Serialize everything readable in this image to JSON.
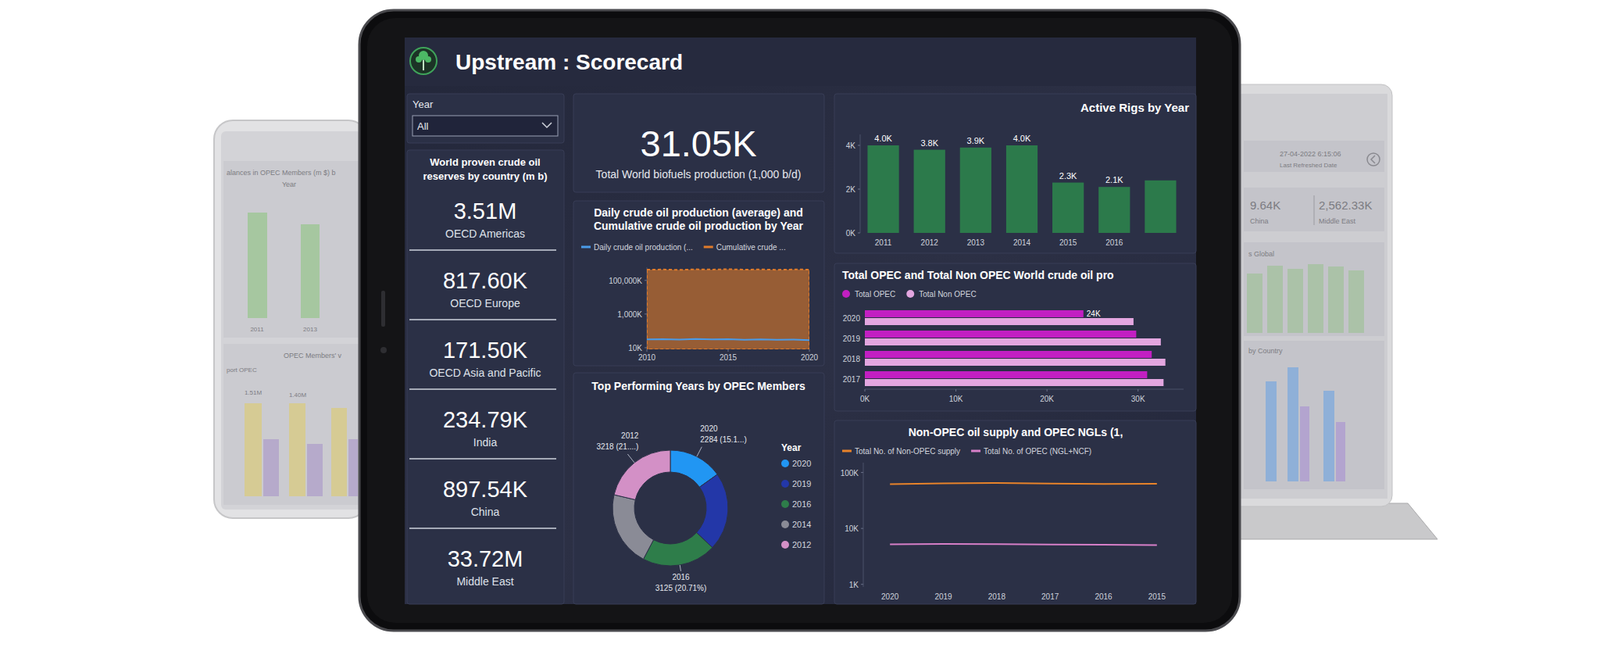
{
  "background_devices": {
    "phone": {
      "texts": [
        "alances in OPEC Members (m $) b",
        "Year",
        "2011",
        "2013",
        "OPEC Members' v",
        "port OPEC",
        "1.51M",
        "1.40M"
      ]
    },
    "laptop": {
      "texts": [
        "27-04-2022 6:15:06",
        "Last Refreshed Date",
        "9.64K",
        "China",
        "2,562.33K",
        "Middle East",
        "s Global",
        "by Country"
      ]
    }
  },
  "header": {
    "title": "Upstream : Scorecard"
  },
  "slicer": {
    "label": "Year",
    "value": "All"
  },
  "reserves": {
    "title": "World proven crude oil reserves by country (m b)",
    "cards": [
      {
        "value": "3.51M",
        "label": "OECD Americas"
      },
      {
        "value": "817.60K",
        "label": "OECD Europe"
      },
      {
        "value": "171.50K",
        "label": "OECD Asia and Pacific"
      },
      {
        "value": "234.79K",
        "label": "India"
      },
      {
        "value": "897.54K",
        "label": "China"
      },
      {
        "value": "33.72M",
        "label": "Middle East"
      }
    ]
  },
  "kpi": {
    "value": "31.05K",
    "label": "Total World biofuels production (1,000 b/d)"
  },
  "chart_data": [
    {
      "type": "line",
      "title": "Daily crude oil production (average) and Cumulative crude oil production by Year",
      "x": [
        2010,
        2011,
        2012,
        2013,
        2014,
        2015,
        2016,
        2017,
        2018,
        2019,
        2020
      ],
      "xlim": [
        2010,
        2020
      ],
      "xticks": [
        2010,
        2015,
        2020
      ],
      "log": "y",
      "ylim": [
        8000,
        600000000
      ],
      "yticks": [
        {
          "value": 10000,
          "label": "10K"
        },
        {
          "value": 1000000,
          "label": "1,000K"
        },
        {
          "value": 100000000,
          "label": "100,000K"
        }
      ],
      "legend": "top",
      "series": [
        {
          "name": "Daily crude oil production (...",
          "color": "#4a9be8",
          "type": "line",
          "values": [
            31000,
            32500,
            30500,
            33000,
            31500,
            32000,
            30000,
            31000,
            29500,
            30500,
            28000
          ]
        },
        {
          "name": "Cumulative crude ...",
          "color": "#e07b2a",
          "type": "area",
          "values": [
            430000000,
            445000000,
            420000000,
            455000000,
            440000000,
            460000000,
            435000000,
            450000000,
            425000000,
            445000000,
            440000000
          ]
        }
      ]
    },
    {
      "type": "donut",
      "title": "Top Performing Years by OPEC Members",
      "legend_title": "Year",
      "categories": [
        "2020",
        "2019",
        "2016",
        "2014",
        "2012"
      ],
      "values": [
        2284,
        3300,
        3125,
        3162,
        3218
      ],
      "value_labels": [
        "2284 (15.1...)",
        null,
        "3125 (20.71%)",
        null,
        "3218 (21....)"
      ],
      "colors": [
        "#2196f3",
        "#2337a8",
        "#2e7d4a",
        "#8a8b96",
        "#d390c6"
      ],
      "data_labels": true,
      "legend": "right"
    },
    {
      "type": "bar",
      "title": "Active Rigs by Year",
      "categories": [
        "2011",
        "2012",
        "2013",
        "2014",
        "2015",
        "2016",
        null
      ],
      "values": [
        4000,
        3800,
        3900,
        4000,
        2300,
        2100,
        2400
      ],
      "value_labels": [
        "4.0K",
        "3.8K",
        "3.9K",
        "4.0K",
        "2.3K",
        "2.1K",
        null
      ],
      "color": "#2c7a4b",
      "ylim": [
        0,
        4500
      ],
      "yticks": [
        {
          "value": 0,
          "label": "0K"
        },
        {
          "value": 2000,
          "label": "2K"
        },
        {
          "value": 4000,
          "label": "4K"
        }
      ],
      "data_labels": true
    },
    {
      "type": "bar",
      "orientation": "horizontal",
      "title": "Total OPEC and Total Non OPEC World crude oil pro",
      "categories": [
        "2020",
        "2019",
        "2018",
        "2017"
      ],
      "series": [
        {
          "name": "Total OPEC",
          "color": "#c21fc2",
          "values": [
            24000,
            29800,
            31500,
            31000
          ],
          "value_labels": [
            "24K",
            null,
            null,
            null
          ]
        },
        {
          "name": "Total Non OPEC",
          "color": "#e3a6e0",
          "values": [
            29500,
            32500,
            33000,
            32800
          ]
        }
      ],
      "xlim": [
        0,
        35000
      ],
      "xticks": [
        {
          "value": 0,
          "label": "0K"
        },
        {
          "value": 10000,
          "label": "10K"
        },
        {
          "value": 20000,
          "label": "20K"
        },
        {
          "value": 30000,
          "label": "30K"
        }
      ],
      "legend": "top",
      "data_labels": true
    },
    {
      "type": "line",
      "title": "Non-OPEC oil supply and OPEC NGLs (1,",
      "categories": [
        "2020",
        "2019",
        "2018",
        "2017",
        "2016",
        "2015"
      ],
      "log": "y",
      "ylim": [
        900,
        150000
      ],
      "yticks": [
        {
          "value": 1000,
          "label": "1K"
        },
        {
          "value": 10000,
          "label": "10K"
        },
        {
          "value": 100000,
          "label": "100K"
        }
      ],
      "legend": "top",
      "series": [
        {
          "name": "Total No. of Non-OPEC supply",
          "color": "#e8832a",
          "values": [
            62000,
            64000,
            65000,
            63500,
            62500,
            63000
          ]
        },
        {
          "name": "Total No. of OPEC (NGL+NCF)",
          "color": "#d77fc8",
          "values": [
            5200,
            5300,
            5250,
            5150,
            5100,
            5050
          ]
        }
      ]
    }
  ]
}
